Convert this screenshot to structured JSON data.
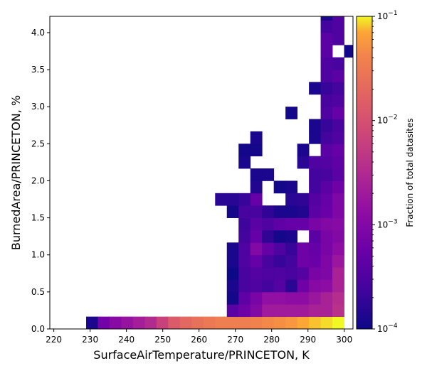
{
  "chart_data": {
    "type": "heatmap",
    "title": "",
    "xlabel": "SurfaceAirTemperature/PRINCETON,  K",
    "ylabel": "BurnedArea/PRINCETON,  %",
    "xlim": [
      218.9,
      302.4
    ],
    "ylim": [
      0,
      4.22
    ],
    "xticks": [
      220,
      230,
      240,
      250,
      260,
      270,
      280,
      290,
      300
    ],
    "yticks": [
      0.0,
      0.5,
      1.0,
      1.5,
      2.0,
      2.5,
      3.0,
      3.5,
      4.0
    ],
    "ytick_labels": [
      "0.0",
      "0.5",
      "1.0",
      "1.5",
      "2.0",
      "2.5",
      "3.0",
      "3.5",
      "4.0"
    ],
    "bin_width_x": 3.23,
    "bin_width_y": 0.1667,
    "x_start": 228.9,
    "colormap": "plasma",
    "colorbar": {
      "label": "Fraction of total datasites",
      "scale": "log",
      "range": [
        0.0001,
        0.1
      ],
      "ticks": [
        {
          "base": "10",
          "exp": "−1",
          "value": 0.1
        },
        {
          "base": "10",
          "exp": "−2",
          "value": 0.01
        },
        {
          "base": "10",
          "exp": "−3",
          "value": 0.001
        },
        {
          "base": "10",
          "exp": "−4",
          "value": 0.0001
        }
      ]
    },
    "cells_note": "[x_bin_index, y_bin_index, log10 fraction]",
    "cells": [
      [
        0,
        0,
        -3.9
      ],
      [
        1,
        0,
        -3.15
      ],
      [
        2,
        0,
        -2.95
      ],
      [
        3,
        0,
        -2.8
      ],
      [
        4,
        0,
        -2.65
      ],
      [
        5,
        0,
        -2.5
      ],
      [
        6,
        0,
        -2.2
      ],
      [
        7,
        0,
        -1.85
      ],
      [
        8,
        0,
        -1.7
      ],
      [
        9,
        0,
        -1.6
      ],
      [
        10,
        0,
        -1.5
      ],
      [
        11,
        0,
        -1.45
      ],
      [
        12,
        0,
        -1.45
      ],
      [
        13,
        0,
        -1.45
      ],
      [
        14,
        0,
        -1.4
      ],
      [
        15,
        0,
        -1.35
      ],
      [
        16,
        0,
        -1.3
      ],
      [
        17,
        0,
        -1.25
      ],
      [
        18,
        0,
        -1.15
      ],
      [
        19,
        0,
        -1.1
      ],
      [
        20,
        0,
        -1.05
      ],
      [
        21,
        0,
        -1.0
      ],
      [
        12,
        1,
        -3.4
      ],
      [
        13,
        1,
        -3.2
      ],
      [
        14,
        1,
        -3.0
      ],
      [
        15,
        1,
        -2.7
      ],
      [
        16,
        1,
        -2.7
      ],
      [
        17,
        1,
        -2.7
      ],
      [
        18,
        1,
        -2.7
      ],
      [
        19,
        1,
        -2.6
      ],
      [
        20,
        1,
        -2.6
      ],
      [
        21,
        1,
        -2.4
      ],
      [
        12,
        2,
        -3.95
      ],
      [
        13,
        2,
        -3.35
      ],
      [
        14,
        2,
        -3.1
      ],
      [
        15,
        2,
        -2.85
      ],
      [
        16,
        2,
        -2.85
      ],
      [
        17,
        2,
        -2.9
      ],
      [
        18,
        2,
        -2.9
      ],
      [
        19,
        2,
        -2.75
      ],
      [
        20,
        2,
        -2.6
      ],
      [
        21,
        2,
        -2.45
      ],
      [
        12,
        3,
        -3.9
      ],
      [
        13,
        3,
        -3.55
      ],
      [
        14,
        3,
        -3.5
      ],
      [
        15,
        3,
        -3.6
      ],
      [
        16,
        3,
        -3.45
      ],
      [
        17,
        3,
        -3.8
      ],
      [
        18,
        3,
        -3.2
      ],
      [
        19,
        3,
        -2.95
      ],
      [
        20,
        3,
        -2.9
      ],
      [
        21,
        3,
        -2.6
      ],
      [
        12,
        4,
        -4.0
      ],
      [
        13,
        4,
        -3.55
      ],
      [
        14,
        4,
        -3.45
      ],
      [
        15,
        4,
        -3.5
      ],
      [
        16,
        4,
        -3.5
      ],
      [
        17,
        4,
        -3.55
      ],
      [
        18,
        4,
        -3.45
      ],
      [
        19,
        4,
        -3.1
      ],
      [
        20,
        4,
        -3.05
      ],
      [
        21,
        4,
        -2.6
      ],
      [
        12,
        5,
        -3.9
      ],
      [
        13,
        5,
        -3.5
      ],
      [
        14,
        5,
        -3.3
      ],
      [
        15,
        5,
        -3.55
      ],
      [
        16,
        5,
        -3.7
      ],
      [
        17,
        5,
        -3.6
      ],
      [
        18,
        5,
        -3.2
      ],
      [
        19,
        5,
        -3.25
      ],
      [
        20,
        5,
        -3.05
      ],
      [
        21,
        5,
        -2.75
      ],
      [
        12,
        6,
        -3.9
      ],
      [
        13,
        6,
        -3.5
      ],
      [
        14,
        6,
        -3.0
      ],
      [
        15,
        6,
        -3.3
      ],
      [
        16,
        6,
        -3.5
      ],
      [
        17,
        6,
        -3.7
      ],
      [
        18,
        6,
        -3.2
      ],
      [
        19,
        6,
        -3.3
      ],
      [
        20,
        6,
        -3.1
      ],
      [
        21,
        6,
        -2.9
      ],
      [
        13,
        7,
        -3.6
      ],
      [
        14,
        7,
        -3.3
      ],
      [
        15,
        7,
        -3.75
      ],
      [
        16,
        7,
        -3.95
      ],
      [
        17,
        7,
        -3.9
      ],
      [
        19,
        7,
        -3.4
      ],
      [
        20,
        7,
        -3.1
      ],
      [
        21,
        7,
        -3.0
      ],
      [
        13,
        8,
        -3.65
      ],
      [
        14,
        8,
        -3.4
      ],
      [
        15,
        8,
        -3.5
      ],
      [
        16,
        8,
        -3.35
      ],
      [
        17,
        8,
        -3.3
      ],
      [
        18,
        8,
        -3.3
      ],
      [
        19,
        8,
        -3.1
      ],
      [
        20,
        8,
        -3.0
      ],
      [
        21,
        8,
        -2.95
      ],
      [
        12,
        9,
        -3.95
      ],
      [
        13,
        9,
        -3.55
      ],
      [
        14,
        9,
        -3.55
      ],
      [
        15,
        9,
        -3.75
      ],
      [
        16,
        9,
        -3.9
      ],
      [
        17,
        9,
        -3.9
      ],
      [
        18,
        9,
        -3.85
      ],
      [
        19,
        9,
        -3.4
      ],
      [
        20,
        9,
        -3.25
      ],
      [
        21,
        9,
        -3.05
      ],
      [
        11,
        10,
        -3.8
      ],
      [
        12,
        10,
        -3.8
      ],
      [
        13,
        10,
        -3.7
      ],
      [
        14,
        10,
        -3.3
      ],
      [
        17,
        10,
        -3.8
      ],
      [
        18,
        10,
        -3.75
      ],
      [
        19,
        10,
        -3.45
      ],
      [
        20,
        10,
        -3.3
      ],
      [
        21,
        10,
        -3.05
      ],
      [
        14,
        11,
        -3.85
      ],
      [
        16,
        11,
        -3.95
      ],
      [
        17,
        11,
        -3.9
      ],
      [
        19,
        11,
        -3.6
      ],
      [
        20,
        11,
        -3.4
      ],
      [
        21,
        11,
        -3.2
      ],
      [
        14,
        12,
        -3.9
      ],
      [
        15,
        12,
        -3.9
      ],
      [
        19,
        12,
        -3.6
      ],
      [
        20,
        12,
        -3.55
      ],
      [
        21,
        12,
        -3.4
      ],
      [
        13,
        13,
        -3.9
      ],
      [
        18,
        13,
        -3.8
      ],
      [
        19,
        13,
        -3.5
      ],
      [
        20,
        13,
        -3.45
      ],
      [
        21,
        13,
        -3.35
      ],
      [
        13,
        14,
        -3.95
      ],
      [
        14,
        14,
        -3.95
      ],
      [
        18,
        14,
        -3.9
      ],
      [
        20,
        14,
        -3.4
      ],
      [
        21,
        14,
        -3.3
      ],
      [
        14,
        15,
        -3.9
      ],
      [
        19,
        15,
        -3.9
      ],
      [
        20,
        15,
        -3.6
      ],
      [
        21,
        15,
        -3.5
      ],
      [
        19,
        16,
        -3.9
      ],
      [
        20,
        16,
        -3.7
      ],
      [
        21,
        16,
        -3.55
      ],
      [
        17,
        17,
        -3.95
      ],
      [
        20,
        17,
        -3.5
      ],
      [
        21,
        17,
        -3.3
      ],
      [
        20,
        18,
        -3.55
      ],
      [
        21,
        18,
        -3.5
      ],
      [
        19,
        19,
        -3.9
      ],
      [
        20,
        19,
        -3.7
      ],
      [
        21,
        19,
        -3.6
      ],
      [
        20,
        20,
        -3.5
      ],
      [
        21,
        20,
        -3.4
      ],
      [
        20,
        21,
        -3.5
      ],
      [
        21,
        21,
        -3.55
      ],
      [
        20,
        22,
        -3.4
      ],
      [
        22,
        22,
        -3.95
      ],
      [
        20,
        23,
        -3.4
      ],
      [
        21,
        23,
        -3.5
      ],
      [
        20,
        24,
        -3.6
      ],
      [
        21,
        24,
        -3.5
      ],
      [
        20,
        25,
        -3.9
      ],
      [
        21,
        25,
        -3.5
      ],
      [
        20,
        26,
        -3.95
      ],
      [
        21,
        26,
        -3.95
      ],
      [
        20,
        27,
        -3.6
      ],
      [
        22,
        27,
        -3.9
      ],
      [
        20,
        28,
        -3.7
      ],
      [
        21,
        28,
        -3.95
      ],
      [
        22,
        28,
        -3.95
      ],
      [
        20,
        29,
        -3.6
      ],
      [
        21,
        29,
        -3.7
      ],
      [
        22,
        29,
        -3.9
      ],
      [
        20,
        30,
        -3.6
      ],
      [
        21,
        30,
        -3.6
      ],
      [
        22,
        30,
        -3.7
      ],
      [
        21,
        31,
        -3.95
      ],
      [
        22,
        31,
        -3.95
      ],
      [
        20,
        32,
        -3.8
      ],
      [
        21,
        32,
        -3.65
      ],
      [
        22,
        32,
        -3.75
      ],
      [
        20,
        33,
        -3.9
      ],
      [
        21,
        33,
        -3.9
      ],
      [
        22,
        33,
        -3.9
      ],
      [
        19,
        34,
        -3.95
      ],
      [
        20,
        34,
        -3.9
      ],
      [
        21,
        34,
        -3.95
      ],
      [
        18,
        35,
        -3.9
      ],
      [
        19,
        35,
        -3.85
      ],
      [
        20,
        35,
        -3.85
      ],
      [
        21,
        35,
        -3.9
      ],
      [
        22,
        35,
        -3.9
      ],
      [
        19,
        36,
        -3.8
      ],
      [
        20,
        36,
        -3.9
      ],
      [
        21,
        36,
        -3.9
      ],
      [
        22,
        36,
        -3.9
      ],
      [
        18,
        37,
        -3.95
      ],
      [
        19,
        37,
        -3.8
      ],
      [
        20,
        37,
        -3.8
      ],
      [
        21,
        37,
        -3.95
      ],
      [
        22,
        37,
        -3.85
      ],
      [
        18,
        38,
        -3.9
      ],
      [
        20,
        38,
        -3.9
      ],
      [
        22,
        38,
        -3.9
      ],
      [
        19,
        39,
        -3.8
      ],
      [
        20,
        39,
        -3.75
      ],
      [
        21,
        39,
        -3.8
      ],
      [
        22,
        39,
        -3.85
      ],
      [
        19,
        40,
        -3.8
      ],
      [
        20,
        40,
        -3.7
      ],
      [
        21,
        40,
        -3.8
      ],
      [
        22,
        40,
        -3.75
      ],
      [
        19,
        41,
        -3.85
      ],
      [
        20,
        41,
        -3.8
      ],
      [
        21,
        41,
        -3.8
      ],
      [
        22,
        41,
        -3.9
      ],
      [
        20,
        42,
        -3.8
      ],
      [
        21,
        42,
        -3.85
      ],
      [
        22,
        42,
        -3.85
      ],
      [
        21,
        43,
        -3.9
      ],
      [
        18,
        44,
        -3.9
      ],
      [
        20,
        44,
        -3.8
      ],
      [
        21,
        44,
        -3.85
      ],
      [
        22,
        44,
        -3.9
      ],
      [
        18,
        45,
        -3.9
      ],
      [
        20,
        45,
        -3.85
      ],
      [
        22,
        45,
        -3.85
      ],
      [
        18,
        46,
        -3.8
      ],
      [
        20,
        46,
        -3.7
      ],
      [
        21,
        46,
        -3.75
      ],
      [
        22,
        46,
        -3.75
      ],
      [
        20,
        47,
        -3.9
      ],
      [
        21,
        47,
        -3.9
      ],
      [
        22,
        47,
        -3.85
      ],
      [
        18,
        48,
        -3.8
      ],
      [
        19,
        48,
        -3.85
      ],
      [
        20,
        48,
        -3.75
      ],
      [
        21,
        48,
        -3.85
      ],
      [
        22,
        48,
        -3.85
      ],
      [
        18,
        49,
        -3.9
      ],
      [
        19,
        49,
        -3.8
      ],
      [
        20,
        49,
        -3.75
      ],
      [
        21,
        49,
        -3.9
      ],
      [
        20,
        50,
        -3.85
      ],
      [
        21,
        50,
        -3.85
      ],
      [
        20,
        51,
        -3.9
      ],
      [
        21,
        51,
        -3.85
      ],
      [
        20,
        52,
        -3.7
      ],
      [
        21,
        52,
        -3.8
      ],
      [
        22,
        52,
        -3.85
      ],
      [
        20,
        53,
        -3.9
      ],
      [
        21,
        53,
        -3.85
      ]
    ]
  }
}
